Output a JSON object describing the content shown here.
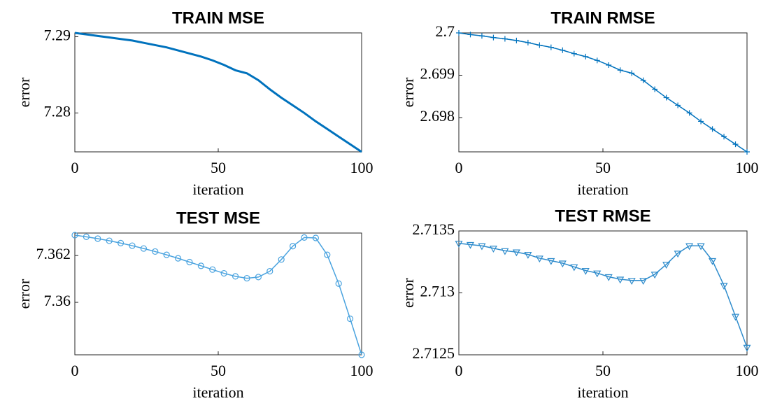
{
  "chart_data": [
    {
      "type": "line",
      "title": "TRAIN MSE",
      "xlabel": "iteration",
      "ylabel": "error",
      "x": [
        0,
        4,
        8,
        12,
        16,
        20,
        24,
        28,
        32,
        36,
        40,
        44,
        48,
        52,
        56,
        60,
        64,
        68,
        72,
        76,
        80,
        84,
        88,
        92,
        96,
        100
      ],
      "values": [
        7.2905,
        7.2903,
        7.2901,
        7.2899,
        7.2897,
        7.2895,
        7.2892,
        7.2889,
        7.2886,
        7.2882,
        7.2878,
        7.2874,
        7.2869,
        7.2863,
        7.2856,
        7.2852,
        7.2843,
        7.2831,
        7.282,
        7.281,
        7.28,
        7.2789,
        7.2779,
        7.2769,
        7.2759,
        7.2749
      ],
      "color": "#0072bd",
      "marker": "none",
      "xlim": [
        0,
        100
      ],
      "xticks": [
        0,
        50,
        100
      ],
      "ylim": [
        7.2749,
        7.2905
      ],
      "yticks": [
        7.28,
        7.29
      ]
    },
    {
      "type": "line",
      "title": "TRAIN RMSE",
      "xlabel": "iteration",
      "ylabel": "error",
      "x": [
        0,
        4,
        8,
        12,
        16,
        20,
        24,
        28,
        32,
        36,
        40,
        44,
        48,
        52,
        56,
        60,
        64,
        68,
        72,
        76,
        80,
        84,
        88,
        92,
        96,
        100
      ],
      "values": [
        2.7,
        2.69996,
        2.69993,
        2.69989,
        2.69986,
        2.69982,
        2.69977,
        2.69971,
        2.69966,
        2.69959,
        2.69951,
        2.69944,
        2.69935,
        2.69924,
        2.69912,
        2.69905,
        2.69888,
        2.69867,
        2.69847,
        2.69829,
        2.69811,
        2.69791,
        2.69773,
        2.69755,
        2.69737,
        2.69719
      ],
      "color": "#0072bd",
      "marker": "plus",
      "xlim": [
        0,
        100
      ],
      "xticks": [
        0,
        50,
        100
      ],
      "ylim": [
        2.69719,
        2.7
      ],
      "yticks": [
        2.698,
        2.699,
        2.7
      ]
    },
    {
      "type": "line",
      "title": "TEST MSE",
      "xlabel": "iteration",
      "ylabel": "error",
      "x": [
        0,
        4,
        8,
        12,
        16,
        20,
        24,
        28,
        32,
        36,
        40,
        44,
        48,
        52,
        56,
        60,
        64,
        68,
        72,
        76,
        80,
        84,
        88,
        92,
        96,
        100
      ],
      "values": [
        7.36287,
        7.3628,
        7.36272,
        7.36263,
        7.36253,
        7.36242,
        7.3623,
        7.36217,
        7.36203,
        7.36188,
        7.36172,
        7.36156,
        7.3614,
        7.36124,
        7.36111,
        7.36103,
        7.36108,
        7.36133,
        7.36183,
        7.3624,
        7.36277,
        7.36275,
        7.36203,
        7.3608,
        7.3593,
        7.35776
      ],
      "color": "#4aa3df",
      "marker": "circle",
      "xlim": [
        0,
        100
      ],
      "xticks": [
        0,
        50,
        100
      ],
      "ylim": [
        7.35776,
        7.36296
      ],
      "yticks": [
        7.36,
        7.362
      ]
    },
    {
      "type": "line",
      "title": "TEST RMSE",
      "xlabel": "iteration",
      "ylabel": "error",
      "x": [
        0,
        4,
        8,
        12,
        16,
        20,
        24,
        28,
        32,
        36,
        40,
        44,
        48,
        52,
        56,
        60,
        64,
        68,
        72,
        76,
        80,
        84,
        88,
        92,
        96,
        100
      ],
      "values": [
        2.7134,
        2.71339,
        2.71338,
        2.71336,
        2.71334,
        2.71333,
        2.71331,
        2.71328,
        2.71326,
        2.71324,
        2.71321,
        2.71318,
        2.71316,
        2.71313,
        2.71311,
        2.7131,
        2.7131,
        2.71315,
        2.71323,
        2.71332,
        2.71338,
        2.71338,
        2.71326,
        2.71306,
        2.71281,
        2.71256
      ],
      "color": "#2f8ccc",
      "marker": "triangle",
      "xlim": [
        0,
        100
      ],
      "xticks": [
        0,
        50,
        100
      ],
      "ylim": [
        2.7125,
        2.7135
      ],
      "yticks": [
        2.7125,
        2.713,
        2.7135
      ]
    }
  ]
}
